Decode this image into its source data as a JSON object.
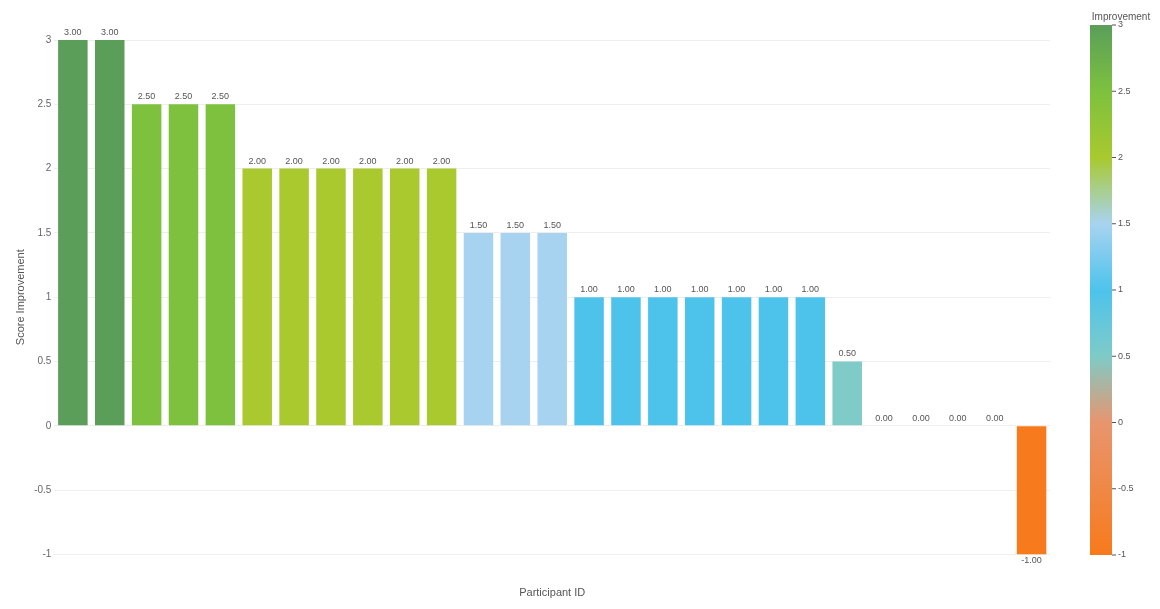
{
  "chart_data": {
    "type": "bar",
    "xlabel": "Participant ID",
    "ylabel": "Score Improvement",
    "clabel": "Improvement",
    "categories": [
      null,
      null,
      null,
      null,
      null,
      null,
      null,
      null,
      null,
      null,
      null,
      null,
      null,
      null,
      null,
      null,
      null,
      null,
      null,
      null,
      null,
      null,
      null,
      null,
      null,
      null,
      null
    ],
    "values": [
      3,
      3,
      2.5,
      2.5,
      2.5,
      2,
      2,
      2,
      2,
      2,
      2,
      1.5,
      1.5,
      1.5,
      1,
      1,
      1,
      1,
      1,
      1,
      1,
      0.5,
      0,
      0,
      0,
      0,
      -1
    ],
    "value_labels": [
      "3.00",
      "3.00",
      "2.50",
      "2.50",
      "2.50",
      "2.00",
      "2.00",
      "2.00",
      "2.00",
      "2.00",
      "2.00",
      "1.50",
      "1.50",
      "1.50",
      "1.00",
      "1.00",
      "1.00",
      "1.00",
      "1.00",
      "1.00",
      "1.00",
      "0.50",
      "0.00",
      "0.00",
      "0.00",
      "0.00",
      "-1.00"
    ],
    "colors": [
      "#5a9e5a",
      "#5a9e5a",
      "#7dc13e",
      "#7dc13e",
      "#7dc13e",
      "#a9c92e",
      "#a9c92e",
      "#a9c92e",
      "#a9c92e",
      "#a9c92e",
      "#a9c92e",
      "#a8d3f0",
      "#a8d3f0",
      "#a8d3f0",
      "#4dc3ec",
      "#4dc3ec",
      "#4dc3ec",
      "#4dc3ec",
      "#4dc3ec",
      "#4dc3ec",
      "#4dc3ec",
      "#7ecbc7",
      "#e8956e",
      "#e8956e",
      "#e8956e",
      "#e8956e",
      "#f77a1c"
    ],
    "ylim": [
      -1,
      3
    ],
    "yticks": [
      -1,
      -0.5,
      0,
      0.5,
      1,
      1.5,
      2,
      2.5,
      3
    ],
    "clim": [
      -1,
      3
    ],
    "cticks": [
      -1,
      -0.5,
      0,
      0.5,
      1,
      1.5,
      2,
      2.5,
      3
    ],
    "grid": "y",
    "legend": false
  }
}
